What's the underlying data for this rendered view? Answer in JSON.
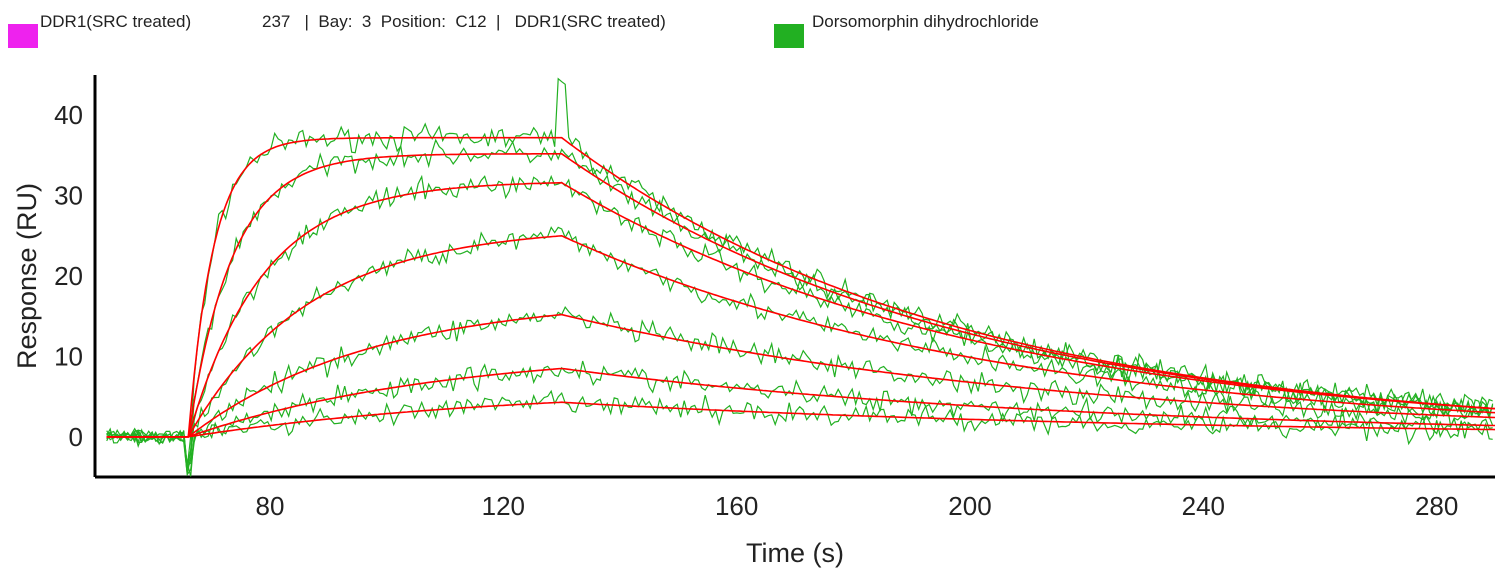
{
  "legend": {
    "items": [
      {
        "label": "DDR1(SRC treated)",
        "color": "#ee22ee"
      },
      {
        "label": "Dorsomorphin dihydrochloride",
        "color": "#22b022"
      }
    ],
    "info_text": "237   |  Bay:  3  Position:  C12  |   DDR1(SRC treated)"
  },
  "chart_data": {
    "type": "line",
    "title": "",
    "xlabel": "Time (s)",
    "ylabel": "Response (RU)",
    "xlim": [
      50,
      290
    ],
    "ylim": [
      -5,
      45
    ],
    "xticks": [
      80,
      120,
      160,
      200,
      240,
      280
    ],
    "yticks": [
      0,
      10,
      20,
      30,
      40
    ],
    "grid": false,
    "colors": {
      "measured": "#22b022",
      "fit": "#ff0000"
    },
    "association_start": 66,
    "dissociation_start": 130,
    "x_end": 290,
    "curves": [
      {
        "plateau_response": 37.2,
        "end_response": 3.5
      },
      {
        "plateau_response": 35.2,
        "end_response": 3.5
      },
      {
        "plateau_response": 31.6,
        "end_response": 3.5
      },
      {
        "plateau_response": 25.0,
        "end_response": 3.0
      },
      {
        "plateau_response": 15.2,
        "end_response": 2.4
      },
      {
        "plateau_response": 8.5,
        "end_response": 1.4
      },
      {
        "plateau_response": 4.3,
        "end_response": 0.9
      }
    ]
  }
}
